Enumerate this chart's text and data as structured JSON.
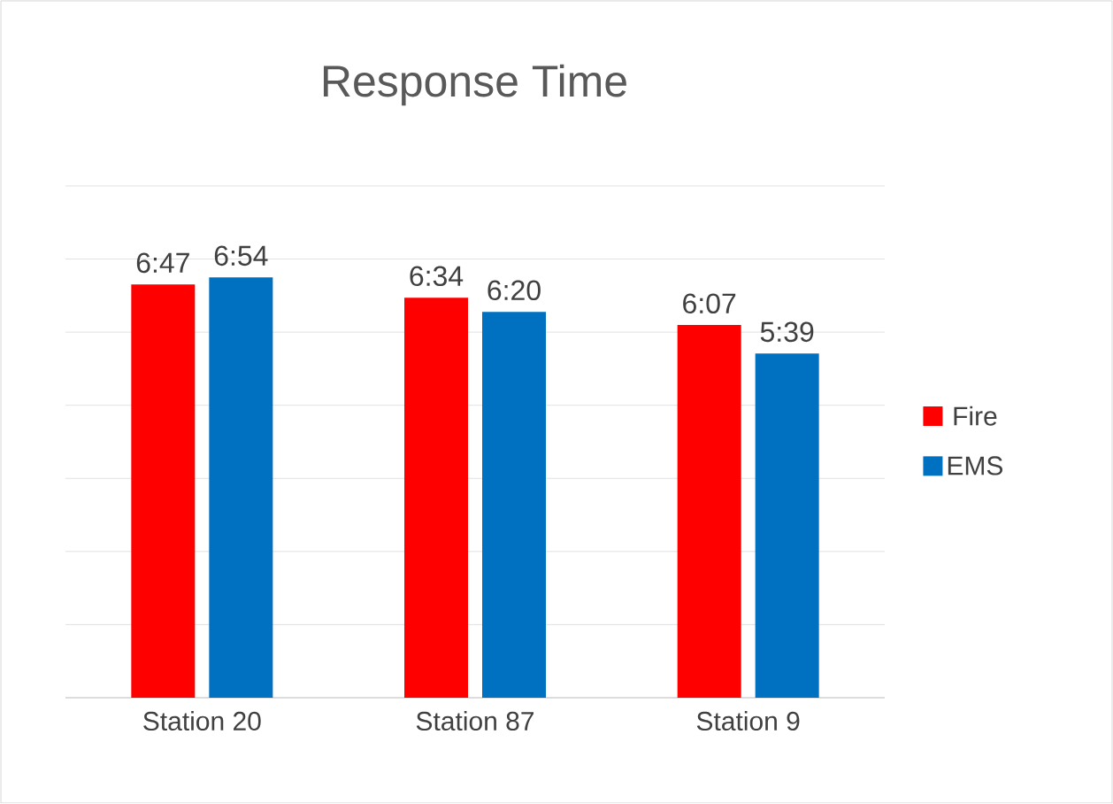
{
  "chart_data": {
    "type": "bar",
    "title": "Response Time",
    "categories": [
      "Station 20",
      "Station 87",
      "Station 9"
    ],
    "series": [
      {
        "name": "Fire",
        "color": "#ff0000",
        "values": [
          407,
          394,
          367
        ],
        "value_labels": [
          "6:47",
          "6:34",
          "6:07"
        ]
      },
      {
        "name": "EMS",
        "color": "#0070c0",
        "values": [
          414,
          380,
          339
        ],
        "value_labels": [
          "6:54",
          "6:20",
          "5:39"
        ]
      }
    ],
    "ylim": [
      0,
      504
    ],
    "tick_labels": "x",
    "grid": "y",
    "legend": "right"
  }
}
